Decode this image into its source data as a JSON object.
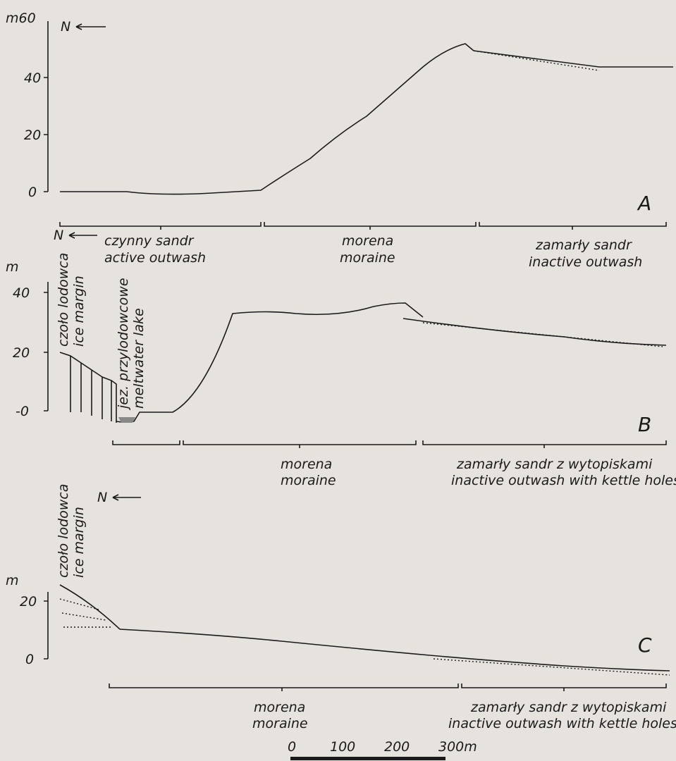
{
  "north_label": "N",
  "panels": [
    {
      "label": "A",
      "y_unit": "m60",
      "y_ticks": [
        "40",
        "20",
        "0"
      ],
      "north": "N",
      "zones": [
        {
          "pl": "czynny sandr",
          "en": "active outwash"
        },
        {
          "pl": "morena",
          "en": "moraine"
        },
        {
          "pl": "zamarły sandr",
          "en": "inactive outwash"
        }
      ]
    },
    {
      "label": "B",
      "y_unit": "m",
      "y_ticks": [
        "40",
        "20",
        "-0"
      ],
      "north": "N",
      "ice_pl": "czoło lodowca",
      "ice_en": "ice margin",
      "lake_pl": "jez. przylodowcowe",
      "lake_en": "meltwater lake",
      "zones": [
        {
          "pl": "morena",
          "en": "moraine"
        },
        {
          "pl": "zamarły sandr z wytopiskami",
          "en": "inactive outwash with kettle holes"
        }
      ]
    },
    {
      "label": "C",
      "y_unit": "m",
      "y_ticks": [
        "20",
        "0"
      ],
      "north": "N",
      "ice_pl": "czoło lodowca",
      "ice_en": "ice margin",
      "zones": [
        {
          "pl": "morena",
          "en": "moraine"
        },
        {
          "pl": "zamarły sandr z wytopiskami",
          "en": "inactive outwash with kettle holes"
        }
      ]
    }
  ],
  "scale": [
    "0",
    "100",
    "200",
    "300m"
  ]
}
